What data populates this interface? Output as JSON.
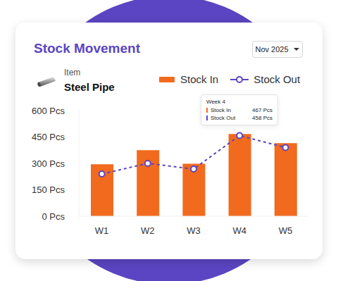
{
  "chart_data": {
    "type": "bar",
    "title": "Stock Movement",
    "period": "Nov 2025",
    "item_label": "Item",
    "item": "Steel Pipe",
    "categories": [
      "W1",
      "W2",
      "W3",
      "W4",
      "W5"
    ],
    "series": [
      {
        "name": "Stock In",
        "type": "bar",
        "color": "#f26a1d",
        "values": [
          295,
          375,
          298,
          467,
          415
        ]
      },
      {
        "name": "Stock Out",
        "type": "line",
        "color": "#5b45c2",
        "line_style": "dashed",
        "marker": "circle",
        "values": [
          240,
          300,
          268,
          458,
          390
        ]
      }
    ],
    "ylim": [
      0,
      600
    ],
    "yticks": [
      {
        "value": 0,
        "label": "0 Pcs"
      },
      {
        "value": 150,
        "label": "150 Pcs"
      },
      {
        "value": 300,
        "label": "300 Pcs"
      },
      {
        "value": 450,
        "label": "450 Pcs"
      },
      {
        "value": 600,
        "label": "600 Pcs"
      }
    ],
    "grid": false,
    "tooltip": {
      "title": "Week 4",
      "rows": [
        {
          "name": "Stock In",
          "label": "467 Pcs"
        },
        {
          "name": "Stock Out",
          "label": "458 Pcs"
        }
      ]
    }
  }
}
